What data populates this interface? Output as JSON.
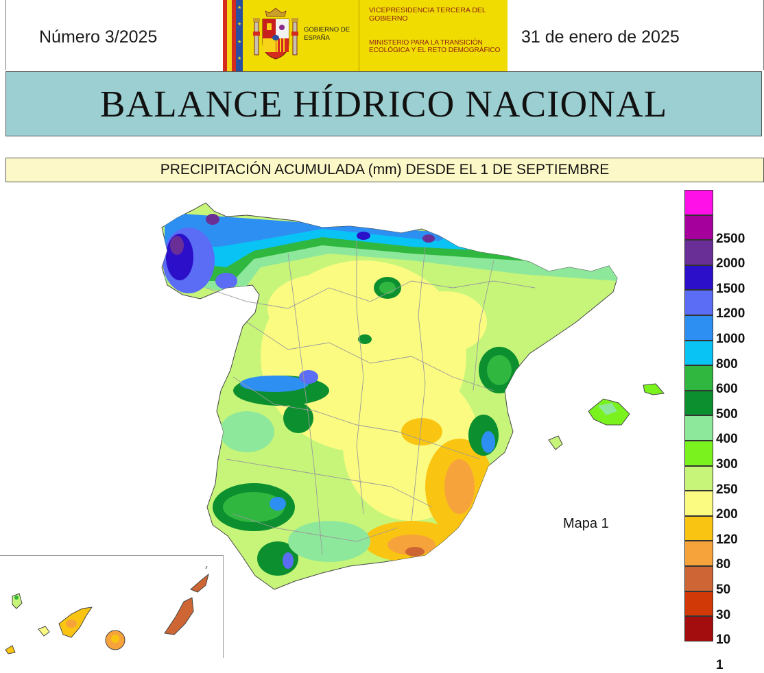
{
  "header": {
    "issue": "Número 3/2025",
    "date": "31 de enero de 2025"
  },
  "logo": {
    "gobierno": "GOBIERNO DE ESPAÑA",
    "vicepresidencia": "VICEPRESIDENCIA TERCERA DEL GOBIERNO",
    "ministerio": "MINISTERIO PARA LA TRANSICIÓN ECOLÓGICA Y EL RETO DEMOGRÁFICO"
  },
  "title": "BALANCE HÍDRICO NACIONAL",
  "subtitle": "PRECIPITACIÓN ACUMULADA (mm) DESDE EL 1 DE SEPTIEMBRE",
  "map_label": "Mapa 1",
  "legend": [
    {
      "label": "",
      "color": "#ff10e8"
    },
    {
      "label": "2500",
      "color": "#a5009b"
    },
    {
      "label": "2000",
      "color": "#6a2f96"
    },
    {
      "label": "1500",
      "color": "#2b0fc9"
    },
    {
      "label": "1200",
      "color": "#5b6cf5"
    },
    {
      "label": "1000",
      "color": "#2e8ff2"
    },
    {
      "label": "800",
      "color": "#09c3f5"
    },
    {
      "label": "600",
      "color": "#2fb740"
    },
    {
      "label": "500",
      "color": "#0c8f2e"
    },
    {
      "label": "400",
      "color": "#8ee89b"
    },
    {
      "label": "300",
      "color": "#7af21e"
    },
    {
      "label": "250",
      "color": "#c6f57a"
    },
    {
      "label": "200",
      "color": "#fbfb82"
    },
    {
      "label": "120",
      "color": "#f9c512"
    },
    {
      "label": "80",
      "color": "#f7a33c"
    },
    {
      "label": "50",
      "color": "#cd6634"
    },
    {
      "label": "30",
      "color": "#d13a07"
    },
    {
      "label": "10",
      "color": "#a30d0d"
    },
    {
      "label": "1",
      "color": ""
    }
  ]
}
